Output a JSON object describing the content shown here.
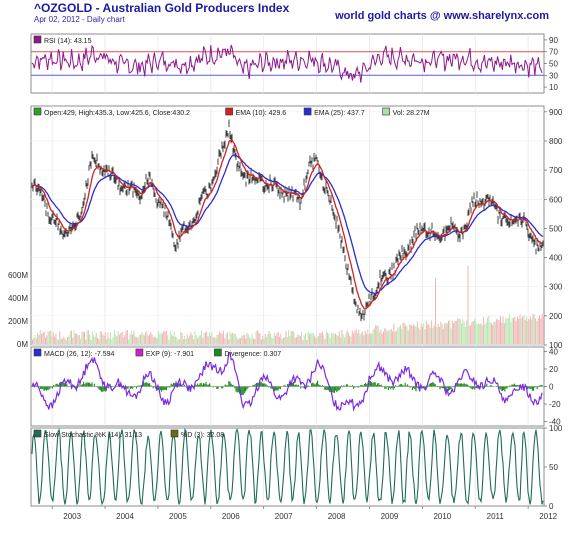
{
  "header": {
    "title": "^OZGOLD - Australian Gold Producers Index",
    "subtitle": "Apr 02, 2012 - Daily chart",
    "brand": "world gold charts @ www.sharelynx.com"
  },
  "colors": {
    "price": "#111111",
    "ema10": "#d42020",
    "ema25": "#2b2bd4",
    "rsi": "#8b1a8b",
    "macd": "#7b2be2",
    "divergence": "#1a8a1a",
    "stoch": "#1f6b5a",
    "overbought": "#e05050",
    "oversold": "#5a5ae0"
  },
  "chart_data": [
    {
      "type": "line",
      "panel": "rsi",
      "legend": [
        {
          "label": "RSI (14): 43.15",
          "color": "#8b1a8b"
        }
      ],
      "ylim": [
        0,
        100
      ],
      "yticks": [
        10,
        30,
        50,
        70,
        90
      ],
      "levels": [
        {
          "value": 70,
          "color": "#e05050"
        },
        {
          "value": 30,
          "color": "#5a5ae0"
        }
      ],
      "series": [
        {
          "name": "RSI (14)",
          "x": [
            2002.6,
            2003.0,
            2003.5,
            2003.8,
            2004.3,
            2004.7,
            2005.0,
            2005.5,
            2005.9,
            2006.35,
            2006.6,
            2007.0,
            2007.5,
            2007.9,
            2008.3,
            2008.7,
            2008.85,
            2009.2,
            2009.7,
            2010.2,
            2010.8,
            2011.2,
            2011.7,
            2012.25
          ],
          "values": [
            55,
            58,
            52,
            68,
            48,
            45,
            55,
            48,
            62,
            70,
            38,
            52,
            55,
            58,
            45,
            28,
            35,
            62,
            58,
            55,
            60,
            50,
            52,
            43.15
          ]
        }
      ]
    },
    {
      "type": "line",
      "panel": "price",
      "legend": [
        {
          "label": "Open:429, High:435.3, Low:425.6, Close:430.2",
          "color": "#2ea02e"
        },
        {
          "label": "EMA (10): 429.6",
          "color": "#d42020"
        },
        {
          "label": "EMA (25): 437.7",
          "color": "#2b2bd4"
        },
        {
          "label": "Vol: 28.27M",
          "color": "#a8e0a8"
        }
      ],
      "ylim": [
        100,
        920
      ],
      "yticks": [
        100,
        200,
        300,
        400,
        500,
        600,
        700,
        800,
        900
      ],
      "volume_ticks": [
        "0M",
        "200M",
        "400M",
        "600M"
      ],
      "series": [
        {
          "name": "Close",
          "x": [
            2002.6,
            2002.8,
            2003.0,
            2003.2,
            2003.5,
            2003.75,
            2004.0,
            2004.3,
            2004.6,
            2004.85,
            2005.1,
            2005.35,
            2005.6,
            2005.85,
            2006.1,
            2006.35,
            2006.5,
            2006.7,
            2007.0,
            2007.2,
            2007.45,
            2007.7,
            2007.85,
            2008.0,
            2008.15,
            2008.35,
            2008.55,
            2008.75,
            2008.85,
            2009.0,
            2009.2,
            2009.5,
            2009.75,
            2010.0,
            2010.3,
            2010.5,
            2010.7,
            2010.85,
            2011.0,
            2011.3,
            2011.6,
            2011.85,
            2012.0,
            2012.25
          ],
          "values": [
            680,
            600,
            540,
            480,
            520,
            740,
            700,
            640,
            620,
            660,
            560,
            450,
            520,
            600,
            700,
            860,
            700,
            680,
            660,
            640,
            620,
            600,
            700,
            740,
            640,
            560,
            380,
            240,
            180,
            260,
            320,
            370,
            440,
            510,
            470,
            510,
            480,
            530,
            600,
            590,
            510,
            540,
            480,
            430.2
          ]
        },
        {
          "name": "EMA (10)",
          "value": 429.6
        },
        {
          "name": "EMA (25)",
          "value": 437.7
        }
      ],
      "volume": {
        "name": "Vol",
        "value": "28.27M"
      }
    },
    {
      "type": "line",
      "panel": "macd",
      "legend": [
        {
          "label": "MACD (26, 12): -7.594",
          "color": "#2b2bd4"
        },
        {
          "label": "EXP (9): -7.901",
          "color": "#cc22cc"
        },
        {
          "label": "Divergence: 0.307",
          "color": "#1a8a1a"
        }
      ],
      "ylim": [
        -45,
        45
      ],
      "yticks": [
        -40,
        -20,
        0,
        20,
        40
      ],
      "series": [
        {
          "name": "MACD (26, 12)",
          "x": [
            2002.6,
            2003.0,
            2003.4,
            2003.7,
            2004.0,
            2004.4,
            2004.8,
            2005.2,
            2005.6,
            2006.0,
            2006.35,
            2006.6,
            2007.0,
            2007.4,
            2007.8,
            2008.0,
            2008.4,
            2008.7,
            2009.0,
            2009.4,
            2009.8,
            2010.2,
            2010.6,
            2011.0,
            2011.4,
            2011.8,
            2012.25
          ],
          "values": [
            -5,
            -15,
            5,
            25,
            10,
            -10,
            8,
            -12,
            5,
            18,
            35,
            -20,
            5,
            -8,
            10,
            22,
            -15,
            -28,
            12,
            15,
            8,
            5,
            0,
            12,
            -5,
            -8,
            -7.594
          ]
        },
        {
          "name": "EXP (9)",
          "value": -7.901
        },
        {
          "name": "Divergence",
          "value": 0.307
        }
      ]
    },
    {
      "type": "line",
      "panel": "stochastic",
      "legend": [
        {
          "label": "Slow Stochastic %K (14): 31.13",
          "color": "#1f6b5a"
        },
        {
          "label": "%D (3): 32.08",
          "color": "#6b6b10"
        }
      ],
      "ylim": [
        0,
        100
      ],
      "yticks": [
        0,
        50,
        100
      ],
      "series": [
        {
          "name": "Slow Stochastic %K (14)",
          "value": 31.13
        },
        {
          "name": "%D (3)",
          "value": 32.08
        }
      ]
    }
  ],
  "x_axis": {
    "ticks": [
      "2003",
      "2004",
      "2005",
      "2006",
      "2007",
      "2008",
      "2009",
      "2010",
      "2011",
      "2012"
    ],
    "range": [
      2002.6,
      2012.3
    ]
  }
}
